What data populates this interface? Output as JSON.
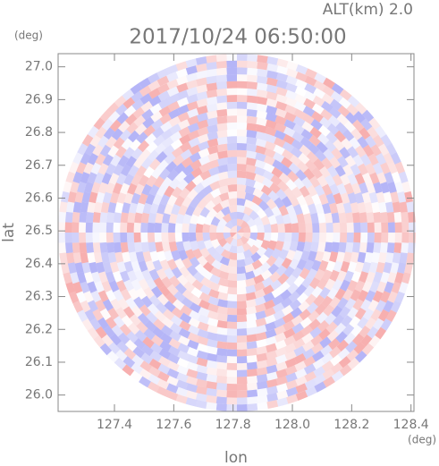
{
  "chart_data": {
    "type": "heatmap",
    "title": "2017/10/24 06:50:00",
    "subtitle": "ALT(km) 2.0",
    "x_label": "lon",
    "y_label": "lat",
    "x_unit": "(deg)",
    "y_unit": "(deg)",
    "xlim": [
      127.21,
      128.41
    ],
    "ylim": [
      25.95,
      27.04
    ],
    "xticks": [
      127.4,
      127.6,
      127.8,
      {
        "value": 128,
        "label": "128.0"
      },
      128.2,
      128.4
    ],
    "yticks": [
      {
        "value": 26,
        "label": "26.0"
      },
      26.1,
      26.2,
      26.3,
      26.4,
      26.5,
      26.6,
      26.7,
      26.8,
      26.9,
      {
        "value": 27,
        "label": "27.0"
      }
    ]
  }
}
